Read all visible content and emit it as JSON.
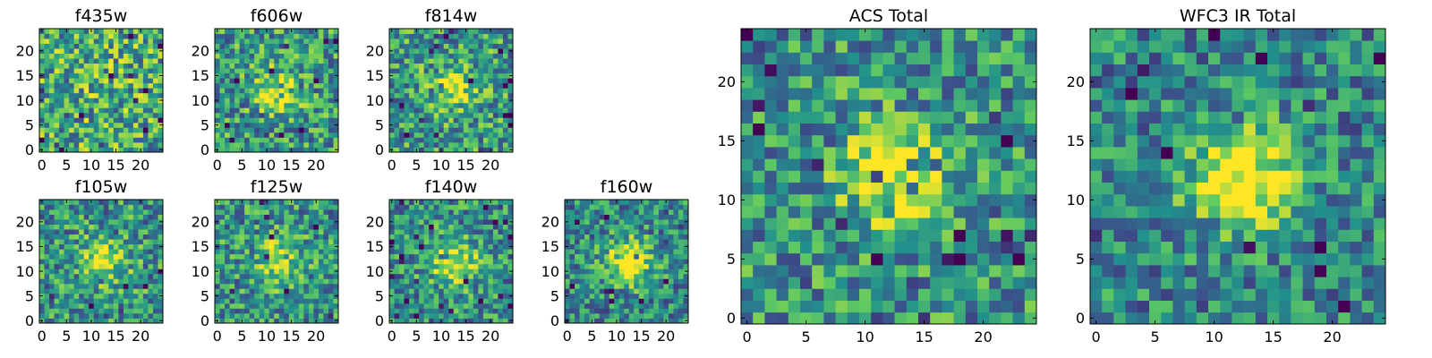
{
  "figure": {
    "colormap": [
      "#440154",
      "#3b528b",
      "#21918c",
      "#5ec962",
      "#fde725"
    ]
  },
  "chart_data": [
    {
      "type": "heatmap",
      "title": "f435w",
      "grid_size": 25,
      "peak_strength": 0.05,
      "x_ticks": [
        0,
        5,
        10,
        15,
        20
      ],
      "y_ticks": [
        0,
        5,
        10,
        15,
        20
      ],
      "xlim": [
        0,
        25
      ],
      "ylim": [
        0,
        25
      ]
    },
    {
      "type": "heatmap",
      "title": "f606w",
      "grid_size": 25,
      "peak_strength": 0.35,
      "x_ticks": [
        0,
        5,
        10,
        15,
        20
      ],
      "y_ticks": [
        0,
        5,
        10,
        15,
        20
      ],
      "xlim": [
        0,
        25
      ],
      "ylim": [
        0,
        25
      ]
    },
    {
      "type": "heatmap",
      "title": "f814w",
      "grid_size": 25,
      "peak_strength": 0.35,
      "x_ticks": [
        0,
        5,
        10,
        15,
        20
      ],
      "y_ticks": [
        0,
        5,
        10,
        15,
        20
      ],
      "xlim": [
        0,
        25
      ],
      "ylim": [
        0,
        25
      ]
    },
    {
      "type": "heatmap",
      "title": "f105w",
      "grid_size": 25,
      "peak_strength": 0.45,
      "x_ticks": [
        0,
        5,
        10,
        15,
        20
      ],
      "y_ticks": [
        0,
        5,
        10,
        15,
        20
      ],
      "xlim": [
        0,
        25
      ],
      "ylim": [
        0,
        25
      ]
    },
    {
      "type": "heatmap",
      "title": "f125w",
      "grid_size": 25,
      "peak_strength": 0.45,
      "x_ticks": [
        0,
        5,
        10,
        15,
        20
      ],
      "y_ticks": [
        0,
        5,
        10,
        15,
        20
      ],
      "xlim": [
        0,
        25
      ],
      "ylim": [
        0,
        25
      ]
    },
    {
      "type": "heatmap",
      "title": "f140w",
      "grid_size": 25,
      "peak_strength": 0.55,
      "x_ticks": [
        0,
        5,
        10,
        15,
        20
      ],
      "y_ticks": [
        0,
        5,
        10,
        15,
        20
      ],
      "xlim": [
        0,
        25
      ],
      "ylim": [
        0,
        25
      ]
    },
    {
      "type": "heatmap",
      "title": "f160w",
      "grid_size": 25,
      "peak_strength": 0.65,
      "x_ticks": [
        0,
        5,
        10,
        15,
        20
      ],
      "y_ticks": [
        0,
        5,
        10,
        15,
        20
      ],
      "xlim": [
        0,
        25
      ],
      "ylim": [
        0,
        25
      ]
    },
    {
      "type": "heatmap",
      "title": "ACS Total",
      "grid_size": 25,
      "peak_strength": 0.5,
      "x_ticks": [
        0,
        5,
        10,
        15,
        20
      ],
      "y_ticks": [
        0,
        5,
        10,
        15,
        20
      ],
      "xlim": [
        0,
        25
      ],
      "ylim": [
        0,
        25
      ]
    },
    {
      "type": "heatmap",
      "title": "WFC3 IR Total",
      "grid_size": 25,
      "peak_strength": 0.75,
      "x_ticks": [
        0,
        5,
        10,
        15,
        20
      ],
      "y_ticks": [
        0,
        5,
        10,
        15,
        20
      ],
      "xlim": [
        0,
        25
      ],
      "ylim": [
        0,
        25
      ]
    }
  ]
}
